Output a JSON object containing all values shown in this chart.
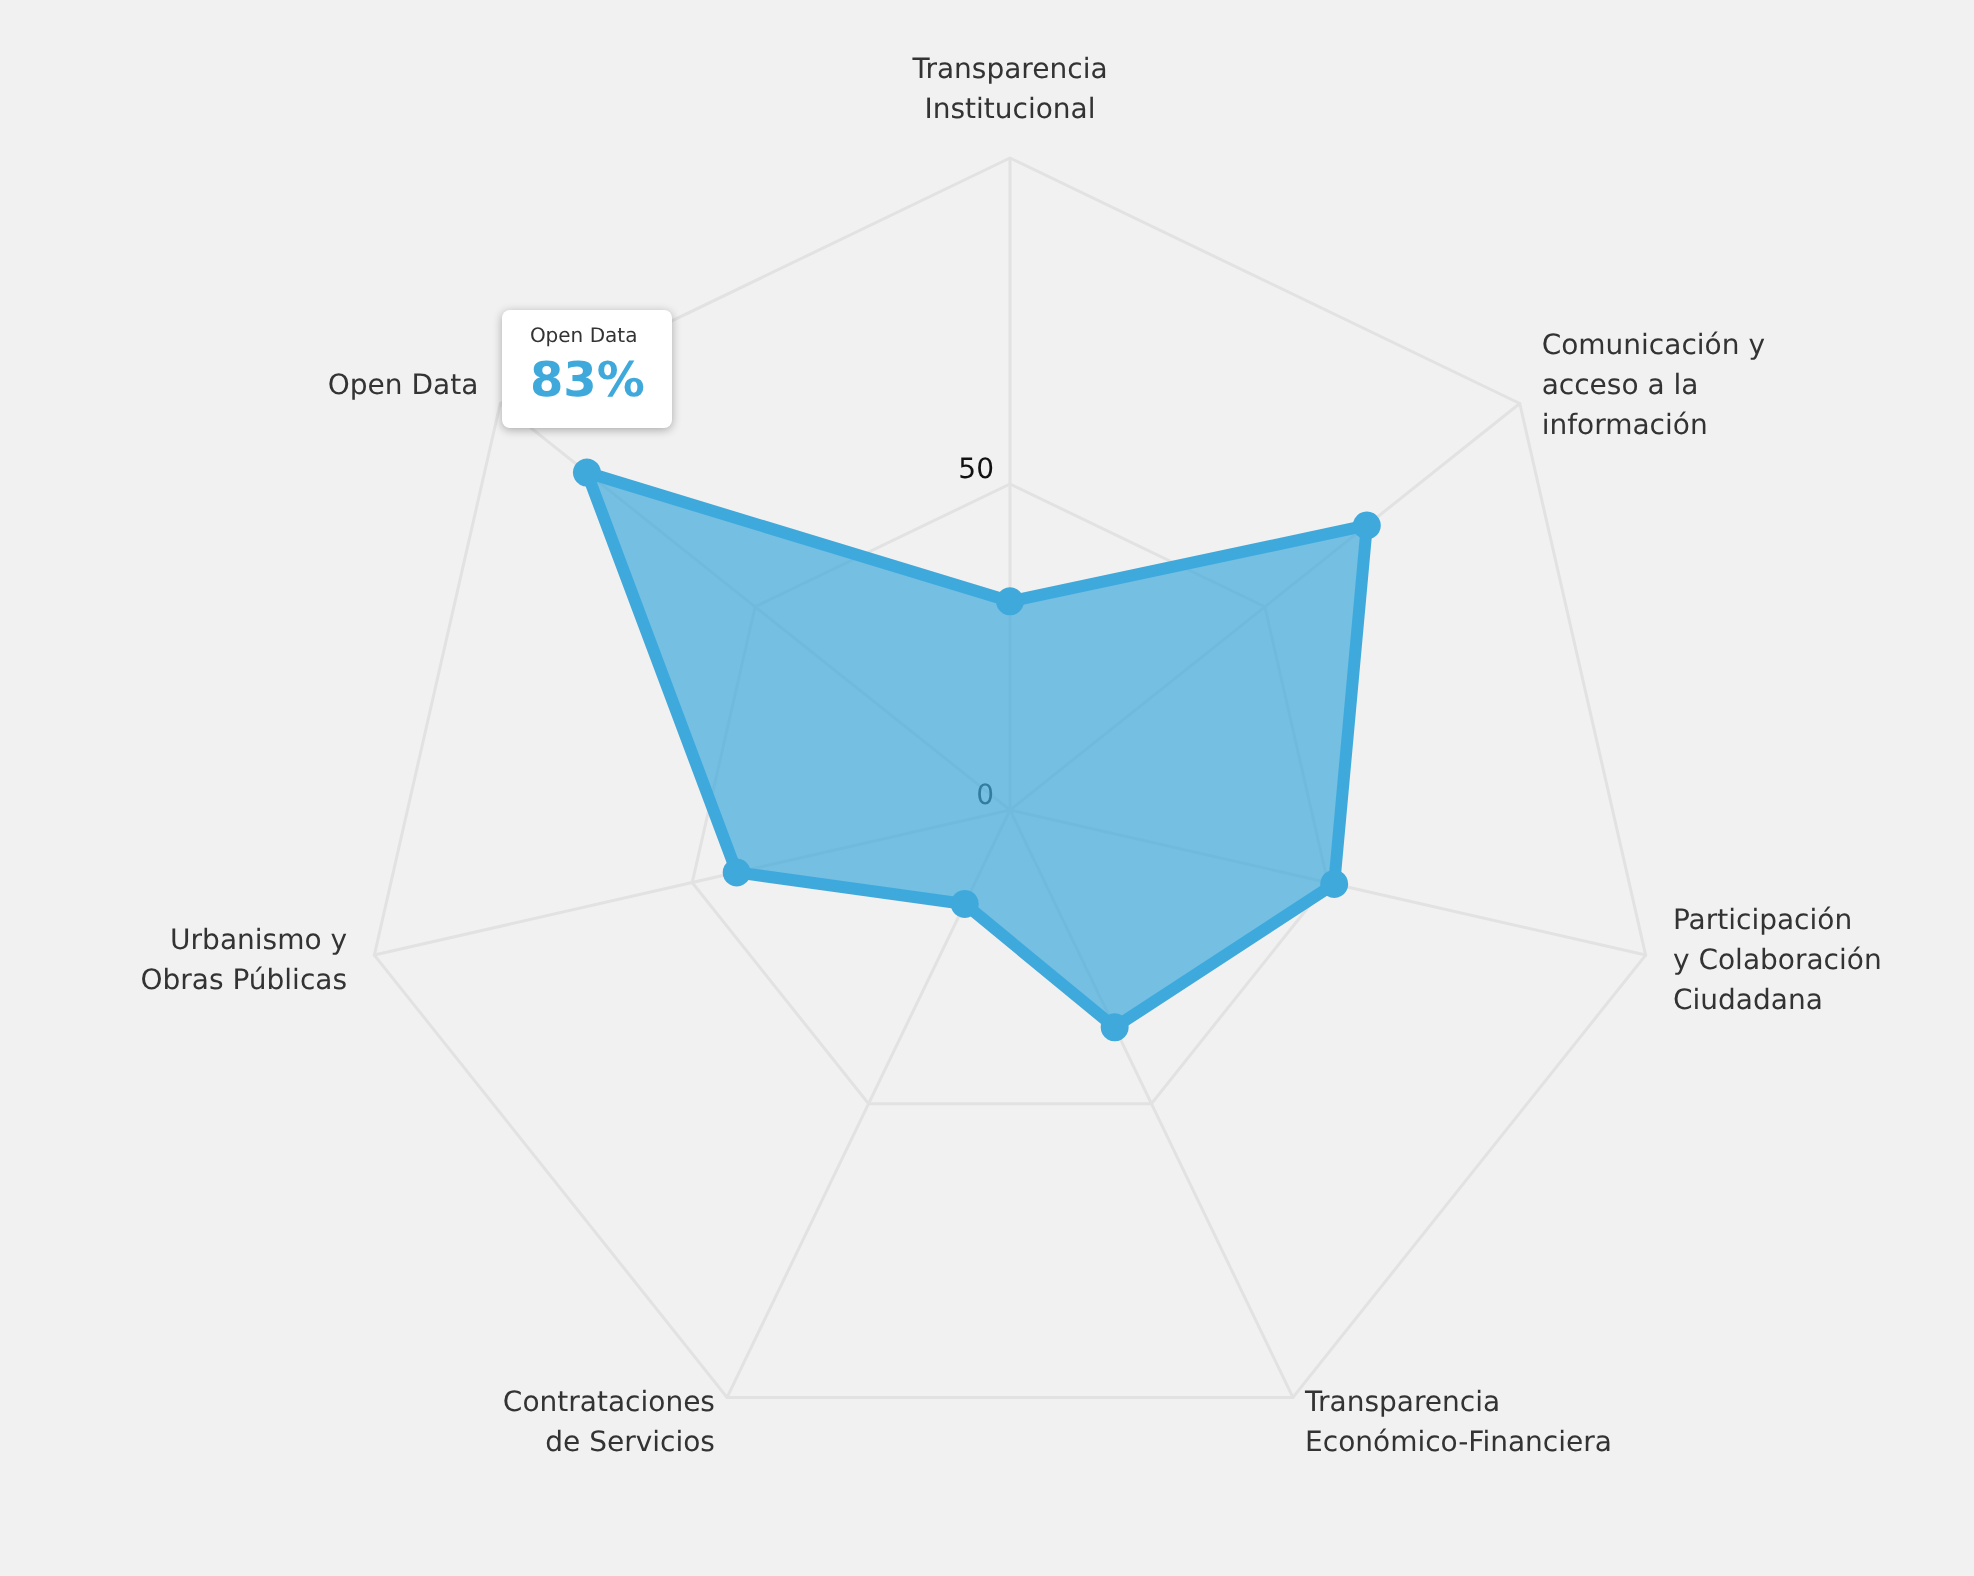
{
  "chart_data": {
    "type": "radar",
    "categories": [
      "Transparencia Institucional",
      "Comunicación y acceso a la información",
      "Participación y Colaboración Ciudadana",
      "Transparencia Económico-Financiera",
      "Contrataciones de Servicios",
      "Urbanismo y Obras Públicas",
      "Open Data"
    ],
    "series": [
      {
        "color": "#3fa9dc",
        "values": [
          32,
          70,
          51,
          37,
          16,
          43,
          83
        ],
        "value_labels": [
          null,
          null,
          null,
          null,
          null,
          null,
          "83%"
        ]
      }
    ],
    "ylim": [
      0,
      100
    ],
    "yticks": [
      0,
      50
    ],
    "grid": true,
    "marker": "circle"
  }
}
